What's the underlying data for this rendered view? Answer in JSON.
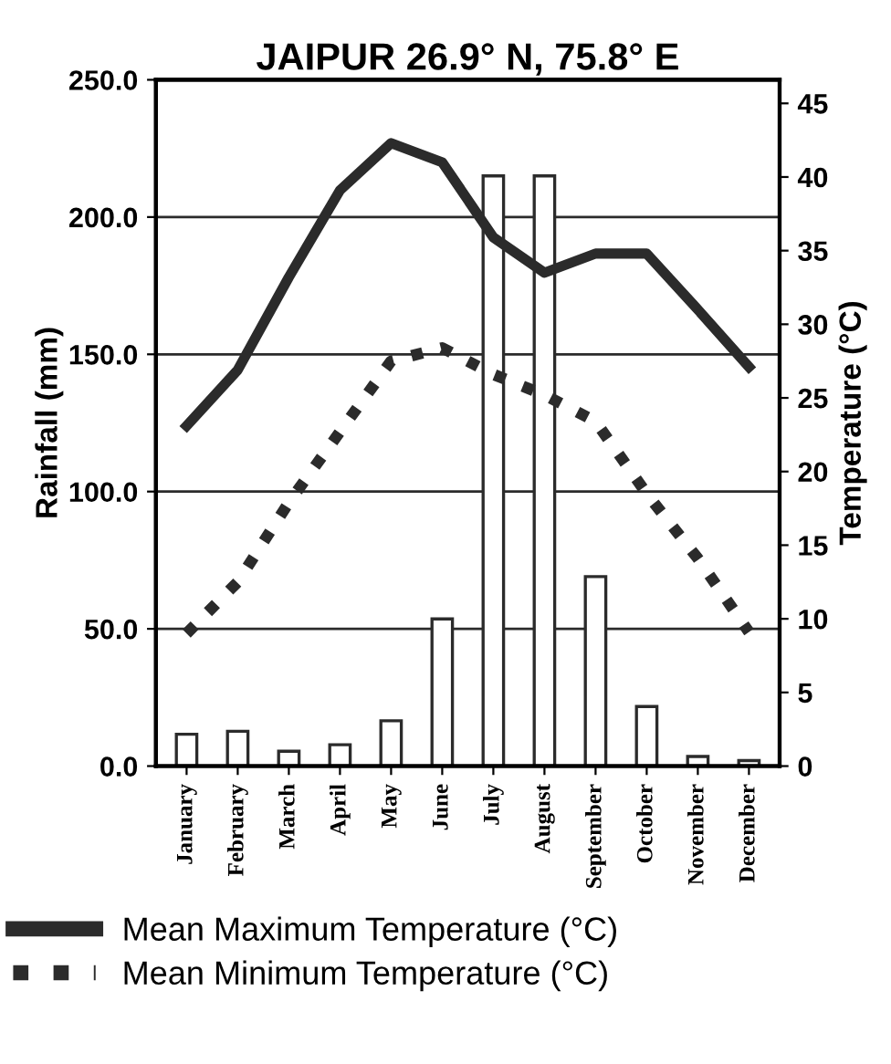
{
  "chart_data": {
    "type": "bar",
    "title": "JAIPUR 26.9° N, 75.8° E",
    "ylabel": "Rainfall (mm)",
    "y2label": "Temperature (°C)",
    "categories": [
      "January",
      "February",
      "March",
      "April",
      "May",
      "June",
      "July",
      "August",
      "September",
      "October",
      "November",
      "December"
    ],
    "series": [
      {
        "color": "#2b2b2b",
        "values": [
          11.6,
          12.7,
          5.4,
          7.8,
          16.5,
          53.6,
          215,
          215,
          69,
          21.7,
          3.5,
          2.0
        ]
      },
      {
        "type": "line",
        "axis": "y2",
        "name": "Mean Maximum Temperature (°C)",
        "color": "#2b2b2b",
        "line_style": "solid",
        "values": [
          23.1,
          26.9,
          33.2,
          39.1,
          42.3,
          41.0,
          35.9,
          33.5,
          34.8,
          34.8,
          31.0,
          27.1
        ]
      },
      {
        "type": "line",
        "axis": "y2",
        "name": "Mean Minimum Temperature (°C)",
        "color": "#2b2b2b",
        "line_style": "dotted",
        "values": [
          9.0,
          12.5,
          17.9,
          22.7,
          27.5,
          28.4,
          26.6,
          25.2,
          23.4,
          18.5,
          14.1,
          9.1
        ]
      }
    ],
    "ylim": [
      0,
      250
    ],
    "yticks": [
      {
        "value": 0,
        "label": "0.0"
      },
      {
        "value": 50,
        "label": "50.0"
      },
      {
        "value": 100,
        "label": "100.0"
      },
      {
        "value": 150,
        "label": "150.0"
      },
      {
        "value": 200,
        "label": "200.0"
      },
      {
        "value": 250,
        "label": "250.0"
      }
    ],
    "y2lim": [
      0,
      46.6
    ],
    "y2ticks": [
      0,
      5,
      10,
      15,
      20,
      25,
      30,
      35,
      40,
      45
    ],
    "grid": "y",
    "legend": "bottom"
  }
}
